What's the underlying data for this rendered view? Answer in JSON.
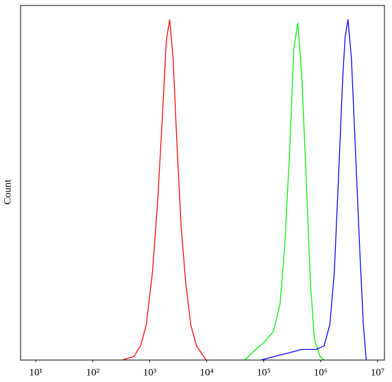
{
  "chart_data": {
    "type": "line",
    "y_label": "Count",
    "log_x": true,
    "xlim": [
      5.4,
      13200000
    ],
    "ylim": [
      0,
      100
    ],
    "xticks": [
      {
        "value": 10,
        "label": "10¹"
      },
      {
        "value": 100,
        "label": "10²"
      },
      {
        "value": 1000,
        "label": "10³"
      },
      {
        "value": 10000,
        "label": "10⁴"
      },
      {
        "value": 100000,
        "label": "10⁵"
      },
      {
        "value": 1000000,
        "label": "10⁶"
      },
      {
        "value": 10000000,
        "label": "10⁷"
      }
    ],
    "series": [
      {
        "color": "#ff0000",
        "x": [
          330,
          525,
          690,
          870,
          1120,
          1380,
          1660,
          1950,
          2240,
          2570,
          3020,
          3550,
          4270,
          5250,
          6610,
          9770
        ],
        "values": [
          0,
          1,
          4,
          10,
          25,
          45,
          68,
          90,
          96,
          85,
          60,
          38,
          22,
          10,
          4,
          0
        ]
      },
      {
        "color": "#00ee00",
        "x": [
          46800,
          72400,
          102000,
          148000,
          195000,
          234000,
          288000,
          339000,
          398000,
          468000,
          562000,
          661000,
          776000,
          977000,
          1150000
        ],
        "values": [
          0,
          3,
          5,
          8,
          16,
          32,
          60,
          88,
          95,
          80,
          50,
          22,
          6,
          1,
          0
        ]
      },
      {
        "color": "#0000ff",
        "x": [
          89100,
          155000,
          269000,
          468000,
          832000,
          1150000,
          1450000,
          1740000,
          2040000,
          2450000,
          2690000,
          3020000,
          3470000,
          4070000,
          4900000,
          5620000,
          6310000
        ],
        "values": [
          0,
          1,
          2,
          3,
          3,
          4,
          10,
          25,
          50,
          80,
          91,
          96,
          85,
          60,
          30,
          10,
          0
        ]
      }
    ]
  }
}
